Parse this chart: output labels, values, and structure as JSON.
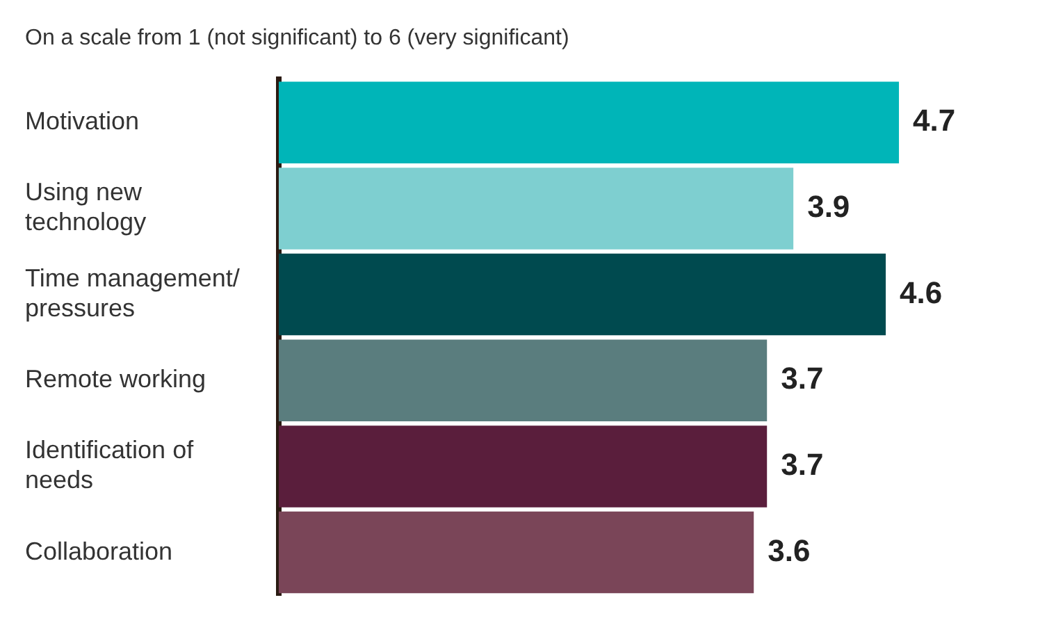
{
  "chart_data": {
    "type": "bar",
    "orientation": "horizontal",
    "title": "On a scale from 1 (not significant) to 6 (very significant)",
    "categories": [
      "Motivation",
      "Using new technology",
      "Time management/ pressures",
      "Remote working",
      "Identification of needs",
      "Collaboration"
    ],
    "values": [
      4.7,
      3.9,
      4.6,
      3.7,
      3.7,
      3.6
    ],
    "colors": [
      "#00b5b8",
      "#7ecfd0",
      "#004a4f",
      "#5a7d7e",
      "#5a1e3c",
      "#7a4558"
    ],
    "tick_labels": "y",
    "data_labels": true,
    "grid": false,
    "legend": false
  }
}
